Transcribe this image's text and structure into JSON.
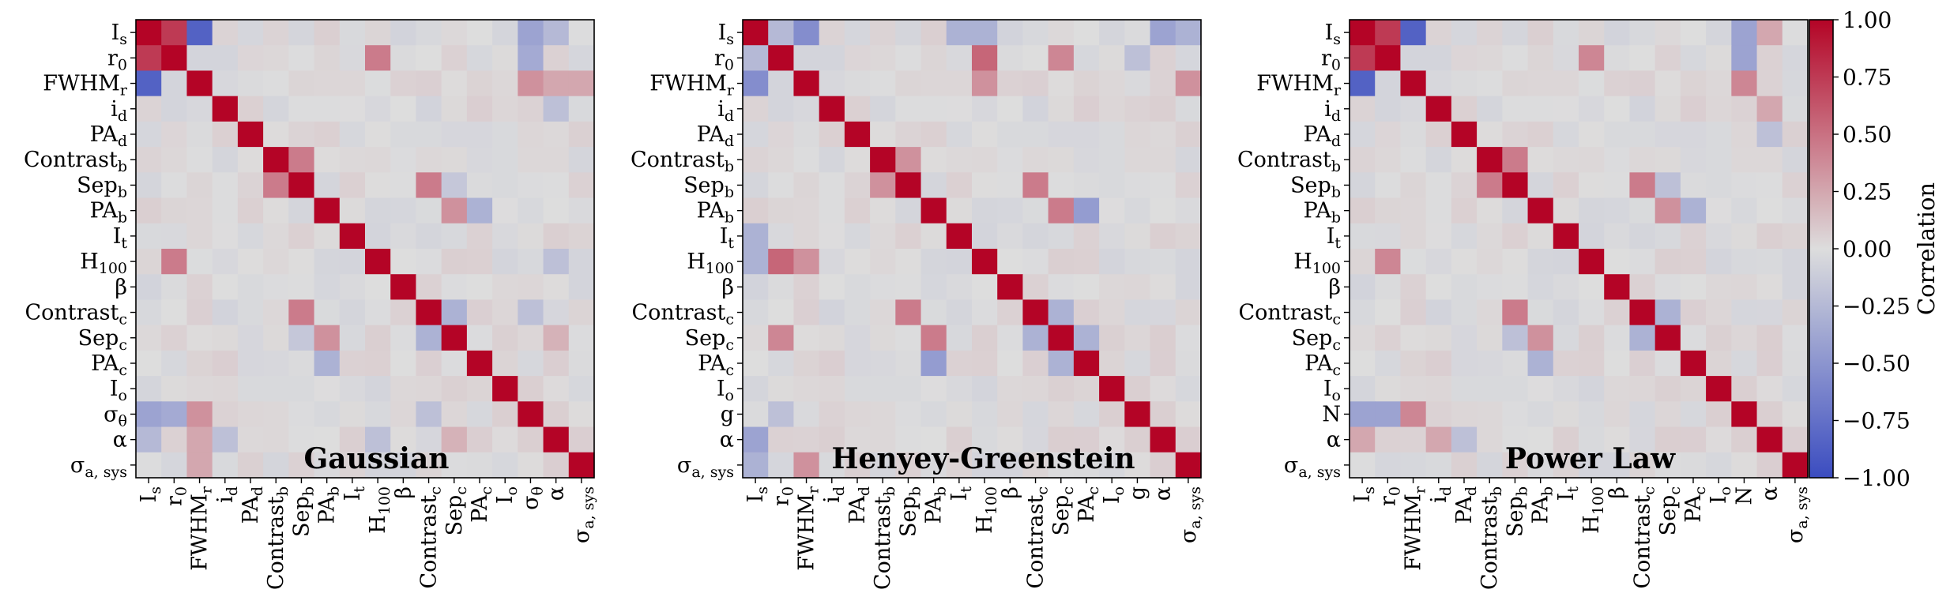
{
  "chart_data": [
    {
      "type": "heatmap",
      "title": "Gaussian",
      "labels": [
        [
          "I",
          "s"
        ],
        [
          "r",
          "0"
        ],
        [
          "FWHM",
          "r"
        ],
        [
          "i",
          "d"
        ],
        [
          "PA",
          "d"
        ],
        [
          "Contrast",
          "b"
        ],
        [
          "Sep",
          "b"
        ],
        [
          "PA",
          "b"
        ],
        [
          "I",
          "t"
        ],
        [
          "H",
          "100"
        ],
        [
          "β",
          ""
        ],
        [
          "Contrast",
          "c"
        ],
        [
          "Sep",
          "c"
        ],
        [
          "PA",
          "c"
        ],
        [
          "I",
          "o"
        ],
        [
          "σ",
          "θ"
        ],
        [
          "α",
          ""
        ],
        [
          "σ",
          "a, sys"
        ]
      ],
      "special": [
        [
          0,
          1,
          0.75
        ],
        [
          0,
          2,
          -0.85
        ],
        [
          0,
          15,
          -0.4
        ],
        [
          0,
          16,
          -0.25
        ],
        [
          1,
          9,
          0.45
        ],
        [
          1,
          15,
          -0.35
        ],
        [
          2,
          15,
          0.35
        ],
        [
          2,
          16,
          0.25
        ],
        [
          2,
          17,
          0.25
        ],
        [
          3,
          16,
          -0.2
        ],
        [
          5,
          6,
          0.45
        ],
        [
          6,
          11,
          0.45
        ],
        [
          6,
          12,
          -0.15
        ],
        [
          7,
          12,
          0.35
        ],
        [
          7,
          13,
          -0.3
        ],
        [
          9,
          16,
          -0.2
        ],
        [
          11,
          12,
          -0.3
        ],
        [
          11,
          15,
          -0.2
        ],
        [
          12,
          16,
          0.2
        ]
      ]
    },
    {
      "type": "heatmap",
      "title": "Henyey-Greenstein",
      "labels": [
        [
          "I",
          "s"
        ],
        [
          "r",
          "0"
        ],
        [
          "FWHM",
          "r"
        ],
        [
          "i",
          "d"
        ],
        [
          "PA",
          "d"
        ],
        [
          "Contrast",
          "b"
        ],
        [
          "Sep",
          "b"
        ],
        [
          "PA",
          "b"
        ],
        [
          "I",
          "t"
        ],
        [
          "H",
          "100"
        ],
        [
          "β",
          ""
        ],
        [
          "Contrast",
          "c"
        ],
        [
          "Sep",
          "c"
        ],
        [
          "PA",
          "c"
        ],
        [
          "I",
          "o"
        ],
        [
          "g",
          ""
        ],
        [
          "α",
          ""
        ],
        [
          "σ",
          "a, sys"
        ]
      ],
      "special": [
        [
          0,
          1,
          -0.25
        ],
        [
          0,
          2,
          -0.55
        ],
        [
          0,
          8,
          -0.3
        ],
        [
          0,
          9,
          -0.3
        ],
        [
          0,
          16,
          -0.4
        ],
        [
          0,
          17,
          -0.3
        ],
        [
          1,
          9,
          0.55
        ],
        [
          1,
          12,
          0.4
        ],
        [
          2,
          9,
          0.35
        ],
        [
          2,
          17,
          0.35
        ],
        [
          5,
          6,
          0.35
        ],
        [
          6,
          11,
          0.45
        ],
        [
          7,
          12,
          0.45
        ],
        [
          7,
          13,
          -0.45
        ],
        [
          11,
          12,
          -0.3
        ],
        [
          12,
          13,
          -0.3
        ],
        [
          1,
          15,
          -0.2
        ]
      ]
    },
    {
      "type": "heatmap",
      "title": "Power Law",
      "labels": [
        [
          "I",
          "s"
        ],
        [
          "r",
          "0"
        ],
        [
          "FWHM",
          "r"
        ],
        [
          "i",
          "d"
        ],
        [
          "PA",
          "d"
        ],
        [
          "Contrast",
          "b"
        ],
        [
          "Sep",
          "b"
        ],
        [
          "PA",
          "b"
        ],
        [
          "I",
          "t"
        ],
        [
          "H",
          "100"
        ],
        [
          "β",
          ""
        ],
        [
          "Contrast",
          "c"
        ],
        [
          "Sep",
          "c"
        ],
        [
          "PA",
          "c"
        ],
        [
          "I",
          "o"
        ],
        [
          "N",
          ""
        ],
        [
          "α",
          ""
        ],
        [
          "σ",
          "a, sys"
        ]
      ],
      "special": [
        [
          0,
          1,
          0.75
        ],
        [
          0,
          2,
          -0.85
        ],
        [
          0,
          15,
          -0.4
        ],
        [
          0,
          16,
          0.25
        ],
        [
          1,
          9,
          0.4
        ],
        [
          1,
          15,
          -0.4
        ],
        [
          2,
          15,
          0.4
        ],
        [
          5,
          6,
          0.45
        ],
        [
          6,
          11,
          0.45
        ],
        [
          6,
          12,
          -0.2
        ],
        [
          7,
          12,
          0.35
        ],
        [
          7,
          13,
          -0.3
        ],
        [
          11,
          12,
          -0.3
        ],
        [
          3,
          16,
          0.25
        ],
        [
          4,
          16,
          -0.2
        ]
      ]
    }
  ],
  "colorbar": {
    "label": "Correlation",
    "ticks": [
      "1.00",
      "0.75",
      "0.50",
      "0.25",
      "0.00",
      "−0.25",
      "−0.50",
      "−0.75",
      "−1.00"
    ],
    "range": [
      -1,
      1
    ],
    "colors": {
      "neg": "#3b4cc0",
      "mid": "#dddddd",
      "pos": "#b40426"
    }
  }
}
